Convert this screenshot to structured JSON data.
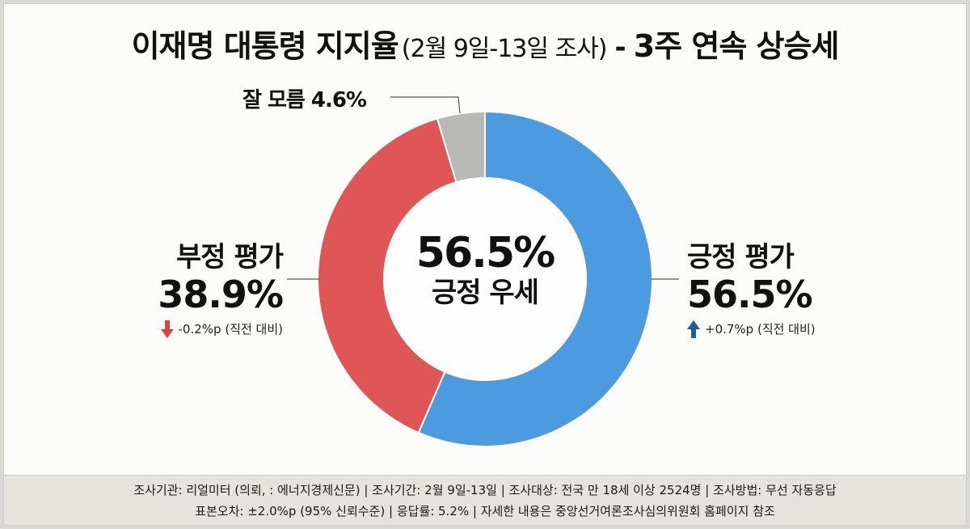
{
  "title": {
    "main": "이재명 대통령 지지율",
    "period": "(2월 9일-13일 조사)",
    "separator": "-",
    "headline": "3주 연속 상승세"
  },
  "center": {
    "value": "56.5%",
    "caption": "긍정 우세"
  },
  "labels": {
    "negative": {
      "name": "부정 평가",
      "value": "38.9%",
      "change": "-0.2%p (직전 대비)",
      "direction": "down",
      "arrow_color": "#d9443f"
    },
    "positive": {
      "name": "긍정 평가",
      "value": "56.5%",
      "change": "+0.7%p (직전 대비)",
      "direction": "up",
      "arrow_color": "#1f5aa6"
    },
    "dont_know": {
      "text": "잘 모름 4.6%"
    }
  },
  "footer": {
    "line1": "조사기관: 리얼미터 (의뢰, : 에너지경제신문) | 조사기간: 2월 9일-13일 | 조사대상: 전국 만 18세 이상 2524명 | 조사방법: 무선 자동응답",
    "line2": "표본오차: ±2.0%p (95% 신뢰수준) | 응답률: 5.2% | 자세한 내용은 중앙선거여론조사심의위원회 홈페이지 참조"
  },
  "colors": {
    "positive": "#4c9be0",
    "negative": "#e05555",
    "dont_know": "#b8b8b4",
    "background": "#fbfbf9",
    "footer_bg": "#e4e3de"
  },
  "chart_data": {
    "type": "pie",
    "variant": "donut",
    "title": "이재명 대통령 지지율 (2월 9일-13일 조사) - 3주 연속 상승세",
    "categories": [
      "긍정 평가",
      "부정 평가",
      "잘 모름"
    ],
    "values": [
      56.5,
      38.9,
      4.6
    ],
    "unit": "%",
    "colors": [
      "#4c9be0",
      "#e05555",
      "#b8b8b4"
    ],
    "start_angle_deg": 0,
    "direction": "clockwise",
    "center_text": [
      "56.5%",
      "긍정 우세"
    ],
    "changes": {
      "긍정 평가": "+0.7%p",
      "부정 평가": "-0.2%p"
    },
    "legend": "none (direct labels)"
  }
}
